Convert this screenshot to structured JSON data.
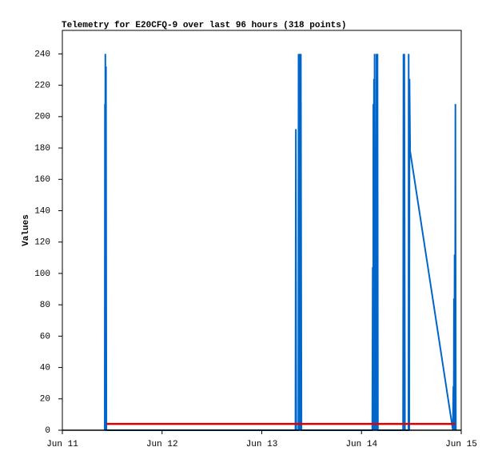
{
  "chart_data": {
    "type": "line",
    "title": "Telemetry for E20CFQ-9 over last 96 hours (318 points)",
    "y_label": "Values",
    "xlim": [
      0,
      96
    ],
    "xticks": [
      {
        "value": 0,
        "label": "Jun 11"
      },
      {
        "value": 24,
        "label": "Jun 12"
      },
      {
        "value": 48,
        "label": "Jun 13"
      },
      {
        "value": 72,
        "label": "Jun 14"
      },
      {
        "value": 96,
        "label": "Jun 15"
      }
    ],
    "ylim": [
      0,
      255
    ],
    "yticks": [
      0,
      20,
      40,
      60,
      80,
      100,
      120,
      140,
      160,
      180,
      200,
      220,
      240
    ],
    "series": [
      {
        "color": "#0066cc",
        "x": [
          10.2,
          10.25,
          10.3,
          10.35,
          10.45,
          10.5,
          10.6,
          56.1,
          56.2,
          56.3,
          56.8,
          56.85,
          57.0,
          57.1,
          57.3,
          57.4,
          57.55,
          74.6,
          74.7,
          74.8,
          74.85,
          74.95,
          75.0,
          75.1,
          75.15,
          75.3,
          75.4,
          75.5,
          75.6,
          75.8,
          75.85,
          75.95,
          82.0,
          82.1,
          82.2,
          82.3,
          82.45,
          83.3,
          83.35,
          83.5,
          83.55,
          83.7,
          94.0,
          94.1,
          94.2,
          94.25,
          94.35,
          94.4,
          94.5,
          94.6,
          94.7
        ],
        "values": [
          0,
          208,
          0,
          240,
          0,
          232,
          0,
          0,
          192,
          0,
          0,
          240,
          0,
          240,
          0,
          240,
          0,
          0,
          104,
          0,
          208,
          0,
          224,
          0,
          240,
          0,
          104,
          0,
          240,
          0,
          240,
          0,
          0,
          240,
          0,
          240,
          0,
          0,
          240,
          0,
          224,
          178,
          0,
          28,
          0,
          84,
          0,
          112,
          0,
          208,
          0
        ]
      },
      {
        "color": "#dd0000",
        "x": [
          10.6,
          94.5
        ],
        "values": [
          4,
          4
        ]
      }
    ]
  }
}
